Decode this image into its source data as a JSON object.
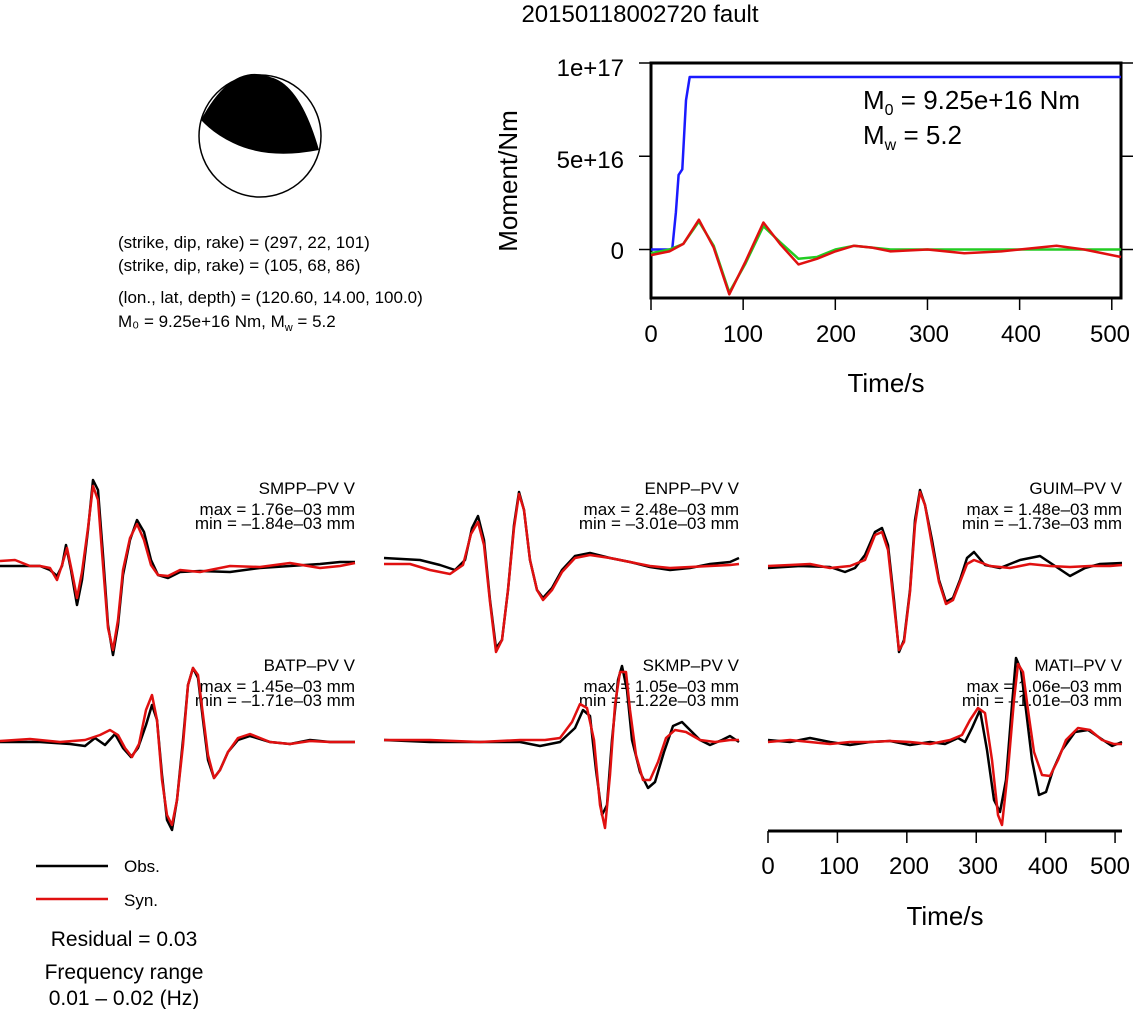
{
  "page": {
    "title": "20150118002720 fault"
  },
  "focal_mechanism": {
    "line1": "(strike, dip, rake) = (297, 22, 101)",
    "line2": "(strike, dip, rake) = (105, 68, 86)",
    "line3": "(lon., lat, depth) = (120.60, 14.00, 100.0)",
    "line4": "M₀ = 9.25e+16 Nm, M",
    "line4_sub": "w",
    "line4_tail": " = 5.2"
  },
  "moment_chart": {
    "ylabel": "Moment/Nm",
    "xlabel": "Time/s",
    "ytick_labels": [
      "1e+17",
      "5e+16",
      "0"
    ],
    "xtick_labels": [
      "0",
      "100",
      "200",
      "300",
      "400",
      "500"
    ],
    "annot_m0": "M",
    "annot_m0_sub": "0",
    "annot_m0_val": " = 9.25e+16 Nm",
    "annot_mw": "M",
    "annot_mw_sub": "w",
    "annot_mw_val": " = 5.2"
  },
  "waveform_axis": {
    "xlabel": "Time/s",
    "xtick_labels": [
      "0",
      "100",
      "200",
      "300",
      "400",
      "500"
    ]
  },
  "legend": {
    "obs_label": "Obs.",
    "syn_label": "Syn.",
    "obs_color": "#000000",
    "syn_color": "#e01010"
  },
  "summary": {
    "residual": "Residual = 0.03",
    "freq_title": "Frequency range",
    "freq_value": "0.01 – 0.02 (Hz)"
  },
  "stations": [
    {
      "name": "SMPP–PV V",
      "max": "max = 1.76e–03 mm",
      "min": "min = –1.84e–03 mm"
    },
    {
      "name": "ENPP–PV V",
      "max": "max = 2.48e–03 mm",
      "min": "min = –3.01e–03 mm"
    },
    {
      "name": "GUIM–PV V",
      "max": "max = 1.48e–03 mm",
      "min": "min = –1.73e–03 mm"
    },
    {
      "name": "BATP–PV V",
      "max": "max = 1.45e–03 mm",
      "min": "min = –1.71e–03 mm"
    },
    {
      "name": "SKMP–PV V",
      "max": "max = 1.05e–03 mm",
      "min": "min = –1.22e–03 mm"
    },
    {
      "name": "MATI–PV V",
      "max": "max = 1.06e–03 mm",
      "min": "min = –1.01e–03 mm"
    }
  ],
  "chart_data": [
    {
      "type": "line",
      "xlabel": "Time/s",
      "ylabel": "Moment/Nm",
      "xlim": [
        0,
        510
      ],
      "ylim": [
        -2.6e+16,
        1e+17
      ],
      "series": [
        {
          "color": "#1a1aff",
          "x": [
            0,
            23,
            27,
            30,
            34,
            38,
            42,
            510
          ],
          "y": [
            0,
            0,
            2e+16,
            4e+16,
            4.3e+16,
            8e+16,
            9.25e+16,
            9.25e+16
          ]
        },
        {
          "color": "#22cc22",
          "x": [
            0,
            20,
            35,
            52,
            68,
            85,
            102,
            122,
            140,
            160,
            180,
            200,
            220,
            240,
            260,
            300,
            340,
            380,
            420,
            460,
            510
          ],
          "y": [
            -2000000000000000.0,
            0,
            3000000000000000.0,
            1.5e+16,
            2000000000000000.0,
            -2.3e+16,
            -8000000000000000.0,
            1.25e+16,
            4000000000000000.0,
            -5000000000000000.0,
            -4000000000000000.0,
            0,
            2000000000000000.0,
            1000000000000000.0,
            0,
            0,
            0,
            0,
            0,
            0,
            0
          ]
        },
        {
          "color": "#e01010",
          "x": [
            0,
            20,
            35,
            52,
            68,
            85,
            102,
            122,
            140,
            160,
            180,
            200,
            220,
            240,
            260,
            300,
            340,
            380,
            420,
            440,
            470,
            510
          ],
          "y": [
            -3000000000000000.0,
            -1000000000000000.0,
            3000000000000000.0,
            1.6e+16,
            1000000000000000.0,
            -2.4e+16,
            -7000000000000000.0,
            1.45e+16,
            3000000000000000.0,
            -8000000000000000.0,
            -5000000000000000.0,
            -1000000000000000.0,
            2000000000000000.0,
            1000000000000000.0,
            -1000000000000000.0,
            0,
            -2000000000000000.0,
            -1000000000000000.0,
            1000000000000000.0,
            2000000000000000.0,
            0,
            -4000000000000000.0
          ]
        }
      ]
    }
  ]
}
